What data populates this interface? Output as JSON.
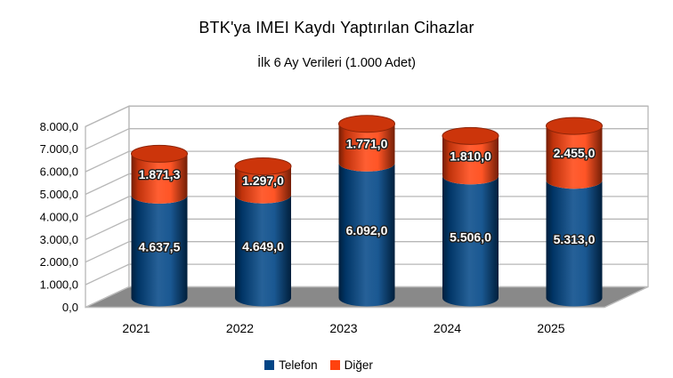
{
  "page": {
    "background": "#ffffff"
  },
  "chart_data": {
    "type": "bar",
    "subtype": "stacked-cylinder-3d",
    "title": "BTK'ya IMEI Kaydı Yaptırılan Cihazlar",
    "subtitle": "İlk 6 Ay Verileri (1.000 Adet)",
    "categories": [
      "2021",
      "2022",
      "2023",
      "2024",
      "2025"
    ],
    "series": [
      {
        "name": "Telefon",
        "color": "#004586",
        "values": [
          4637.5,
          4649.0,
          6092.0,
          5506.0,
          5313.0
        ],
        "labels": [
          "4.637,5",
          "4.649,0",
          "6.092,0",
          "5.506,0",
          "5.313,0"
        ]
      },
      {
        "name": "Diğer",
        "color": "#FF420E",
        "values": [
          1871.3,
          1297.0,
          1771.0,
          1810.0,
          2455.0
        ],
        "labels": [
          "1.871,3",
          "1.297,0",
          "1.771,0",
          "1.810,0",
          "2.455,0"
        ]
      }
    ],
    "y_axis": {
      "min": 0,
      "max": 8000,
      "step": 1000,
      "tick_labels": [
        "0,0",
        "1.000,0",
        "2.000,0",
        "3.000,0",
        "4.000,0",
        "5.000,0",
        "6.000,0",
        "7.000,0",
        "8.000,0"
      ]
    },
    "x_axis": {
      "tick_labels": [
        "2021",
        "2022",
        "2023",
        "2024",
        "2025"
      ]
    },
    "legend": {
      "position": "bottom",
      "entries": [
        {
          "label": "Telefon",
          "color": "#004586"
        },
        {
          "label": "Diğer",
          "color": "#FF420E"
        }
      ]
    },
    "grid": true,
    "colors": {
      "wall": "#ffffff",
      "floor": "#898989",
      "gridline": "#b7b7b7",
      "floor_edge": "#bdbdbd",
      "bar_label_text": "#ffffff",
      "bar_label_outline": "#1f1f1f",
      "axis_text": "#000000"
    }
  }
}
